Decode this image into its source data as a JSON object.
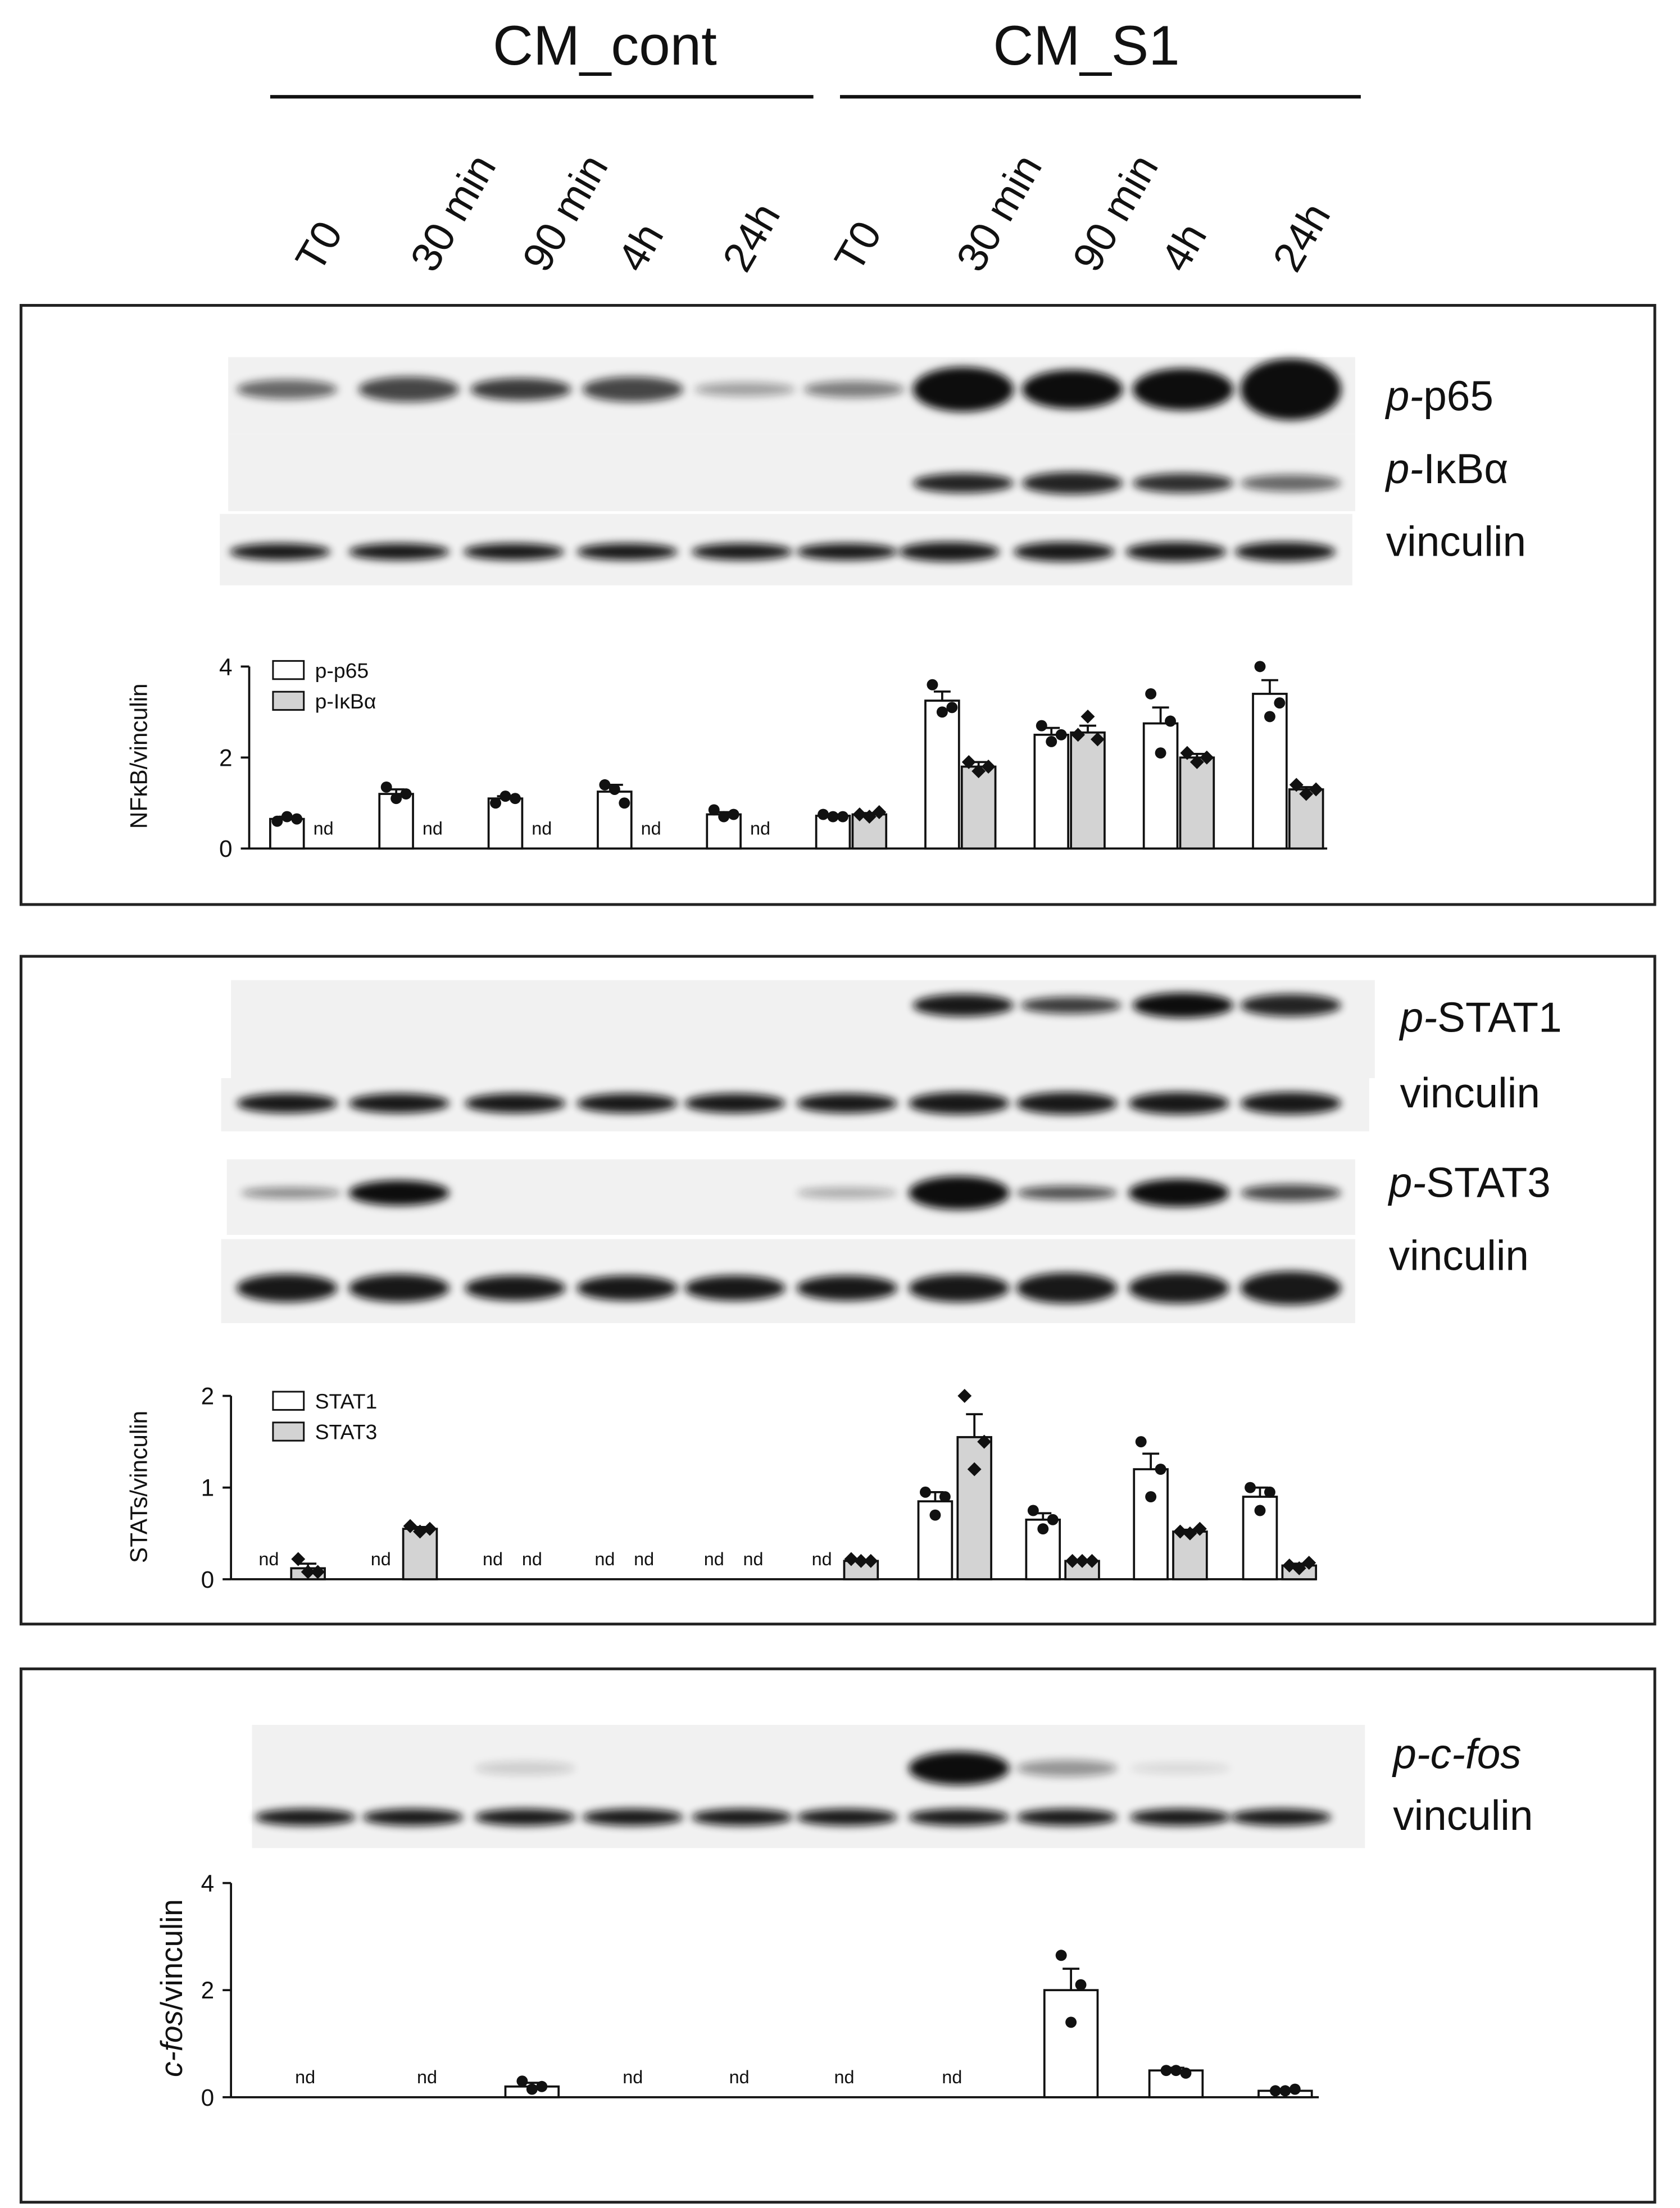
{
  "header": {
    "groups": [
      "CM_cont",
      "CM_S1"
    ],
    "timepoints": [
      "T0",
      "30 min",
      "90 min",
      "4h",
      "24h",
      "T0",
      "30 min",
      "90 min",
      "4h",
      "24h"
    ]
  },
  "blots": [
    {
      "italic": "p-",
      "text": "p65"
    },
    {
      "italic": "p-",
      "text": "IκBα"
    },
    {
      "text": "vinculin"
    },
    {
      "italic": "p-",
      "text": "STAT1"
    },
    {
      "text": "vinculin"
    },
    {
      "italic": "p-",
      "text": "STAT3"
    },
    {
      "text": "vinculin"
    },
    {
      "italic": "p-c-fos"
    },
    {
      "text": "vinculin"
    }
  ],
  "chart_data": [
    {
      "type": "bar",
      "ylabel": "NFκB/vinculin",
      "ylim": [
        0,
        4
      ],
      "yticks": [
        0,
        2,
        4
      ],
      "series": [
        {
          "name": "p-p65",
          "color": "#ffffff",
          "values": [
            0.65,
            1.2,
            1.1,
            1.25,
            0.75,
            0.72,
            3.25,
            2.5,
            2.75,
            3.4
          ],
          "errors": [
            0.05,
            0.1,
            0.05,
            0.15,
            0.05,
            0.03,
            0.2,
            0.15,
            0.35,
            0.3
          ],
          "points": [
            [
              0.6,
              0.7,
              0.65
            ],
            [
              1.35,
              1.1,
              1.2
            ],
            [
              1.0,
              1.15,
              1.1
            ],
            [
              1.4,
              1.3,
              1.0
            ],
            [
              0.85,
              0.7,
              0.75
            ],
            [
              0.75,
              0.7,
              0.7
            ],
            [
              3.6,
              3.0,
              3.1
            ],
            [
              2.7,
              2.35,
              2.5
            ],
            [
              3.4,
              2.1,
              2.8
            ],
            [
              4.0,
              2.9,
              3.2
            ]
          ]
        },
        {
          "name": "p-IκBα",
          "color": "#d3d3d3",
          "values": [
            null,
            null,
            null,
            null,
            null,
            0.75,
            1.8,
            2.55,
            2.0,
            1.3
          ],
          "value_labels": [
            "nd",
            "nd",
            "nd",
            "nd",
            "nd",
            null,
            null,
            null,
            null,
            null
          ],
          "errors": [
            null,
            null,
            null,
            null,
            null,
            0.03,
            0.1,
            0.15,
            0.08,
            0.05
          ],
          "points": [
            null,
            null,
            null,
            null,
            null,
            [
              0.75,
              0.7,
              0.8
            ],
            [
              1.9,
              1.7,
              1.8
            ],
            [
              2.5,
              2.9,
              2.4
            ],
            [
              2.1,
              1.9,
              2.0
            ],
            [
              1.4,
              1.2,
              1.3
            ]
          ]
        }
      ]
    },
    {
      "type": "bar",
      "ylabel": "STATs/vinculin",
      "ylim": [
        0,
        2
      ],
      "yticks": [
        0,
        1,
        2
      ],
      "series": [
        {
          "name": "STAT1",
          "color": "#ffffff",
          "values": [
            null,
            null,
            null,
            null,
            null,
            null,
            0.85,
            0.65,
            1.2,
            0.9
          ],
          "value_labels": [
            "nd",
            "nd",
            "nd",
            "nd",
            "nd",
            "nd",
            null,
            null,
            null,
            null
          ],
          "errors": [
            null,
            null,
            null,
            null,
            null,
            null,
            0.1,
            0.07,
            0.17,
            0.1
          ],
          "points": [
            null,
            null,
            null,
            null,
            null,
            null,
            [
              0.95,
              0.7,
              0.9
            ],
            [
              0.75,
              0.55,
              0.65
            ],
            [
              1.5,
              0.9,
              1.2
            ],
            [
              1.0,
              0.75,
              0.95
            ]
          ]
        },
        {
          "name": "STAT3",
          "color": "#d3d3d3",
          "values": [
            0.12,
            0.55,
            null,
            null,
            null,
            0.2,
            1.55,
            0.2,
            0.52,
            0.15
          ],
          "value_labels": [
            null,
            null,
            "nd",
            "nd",
            "nd",
            null,
            null,
            null,
            null,
            null
          ],
          "errors": [
            0.05,
            0.02,
            null,
            null,
            null,
            0.01,
            0.25,
            0.01,
            0.02,
            0.02
          ],
          "points": [
            [
              0.22,
              0.08,
              0.08
            ],
            [
              0.58,
              0.52,
              0.55
            ],
            null,
            null,
            null,
            [
              0.22,
              0.2,
              0.2
            ],
            [
              2.0,
              1.2,
              1.5
            ],
            [
              0.2,
              0.2,
              0.2
            ],
            [
              0.52,
              0.5,
              0.55
            ],
            [
              0.15,
              0.12,
              0.18
            ]
          ]
        }
      ]
    },
    {
      "type": "bar",
      "ylabel": {
        "italic": "c-fos",
        "text": "/vinculin"
      },
      "ylim": [
        0,
        4
      ],
      "yticks": [
        0,
        2,
        4
      ],
      "series": [
        {
          "color": "#ffffff",
          "values": [
            null,
            null,
            0.2,
            null,
            null,
            null,
            null,
            2.0,
            0.5,
            0.12
          ],
          "value_labels": [
            "nd",
            "nd",
            null,
            "nd",
            "nd",
            "nd",
            "nd",
            null,
            null,
            null
          ],
          "errors": [
            null,
            null,
            0.07,
            null,
            null,
            null,
            null,
            0.4,
            0.05,
            0.02
          ],
          "points": [
            null,
            null,
            [
              0.3,
              0.15,
              0.2
            ],
            null,
            null,
            null,
            null,
            [
              2.65,
              1.4,
              2.1
            ],
            [
              0.5,
              0.5,
              0.45
            ],
            [
              0.12,
              0.12,
              0.15
            ]
          ]
        }
      ]
    }
  ]
}
